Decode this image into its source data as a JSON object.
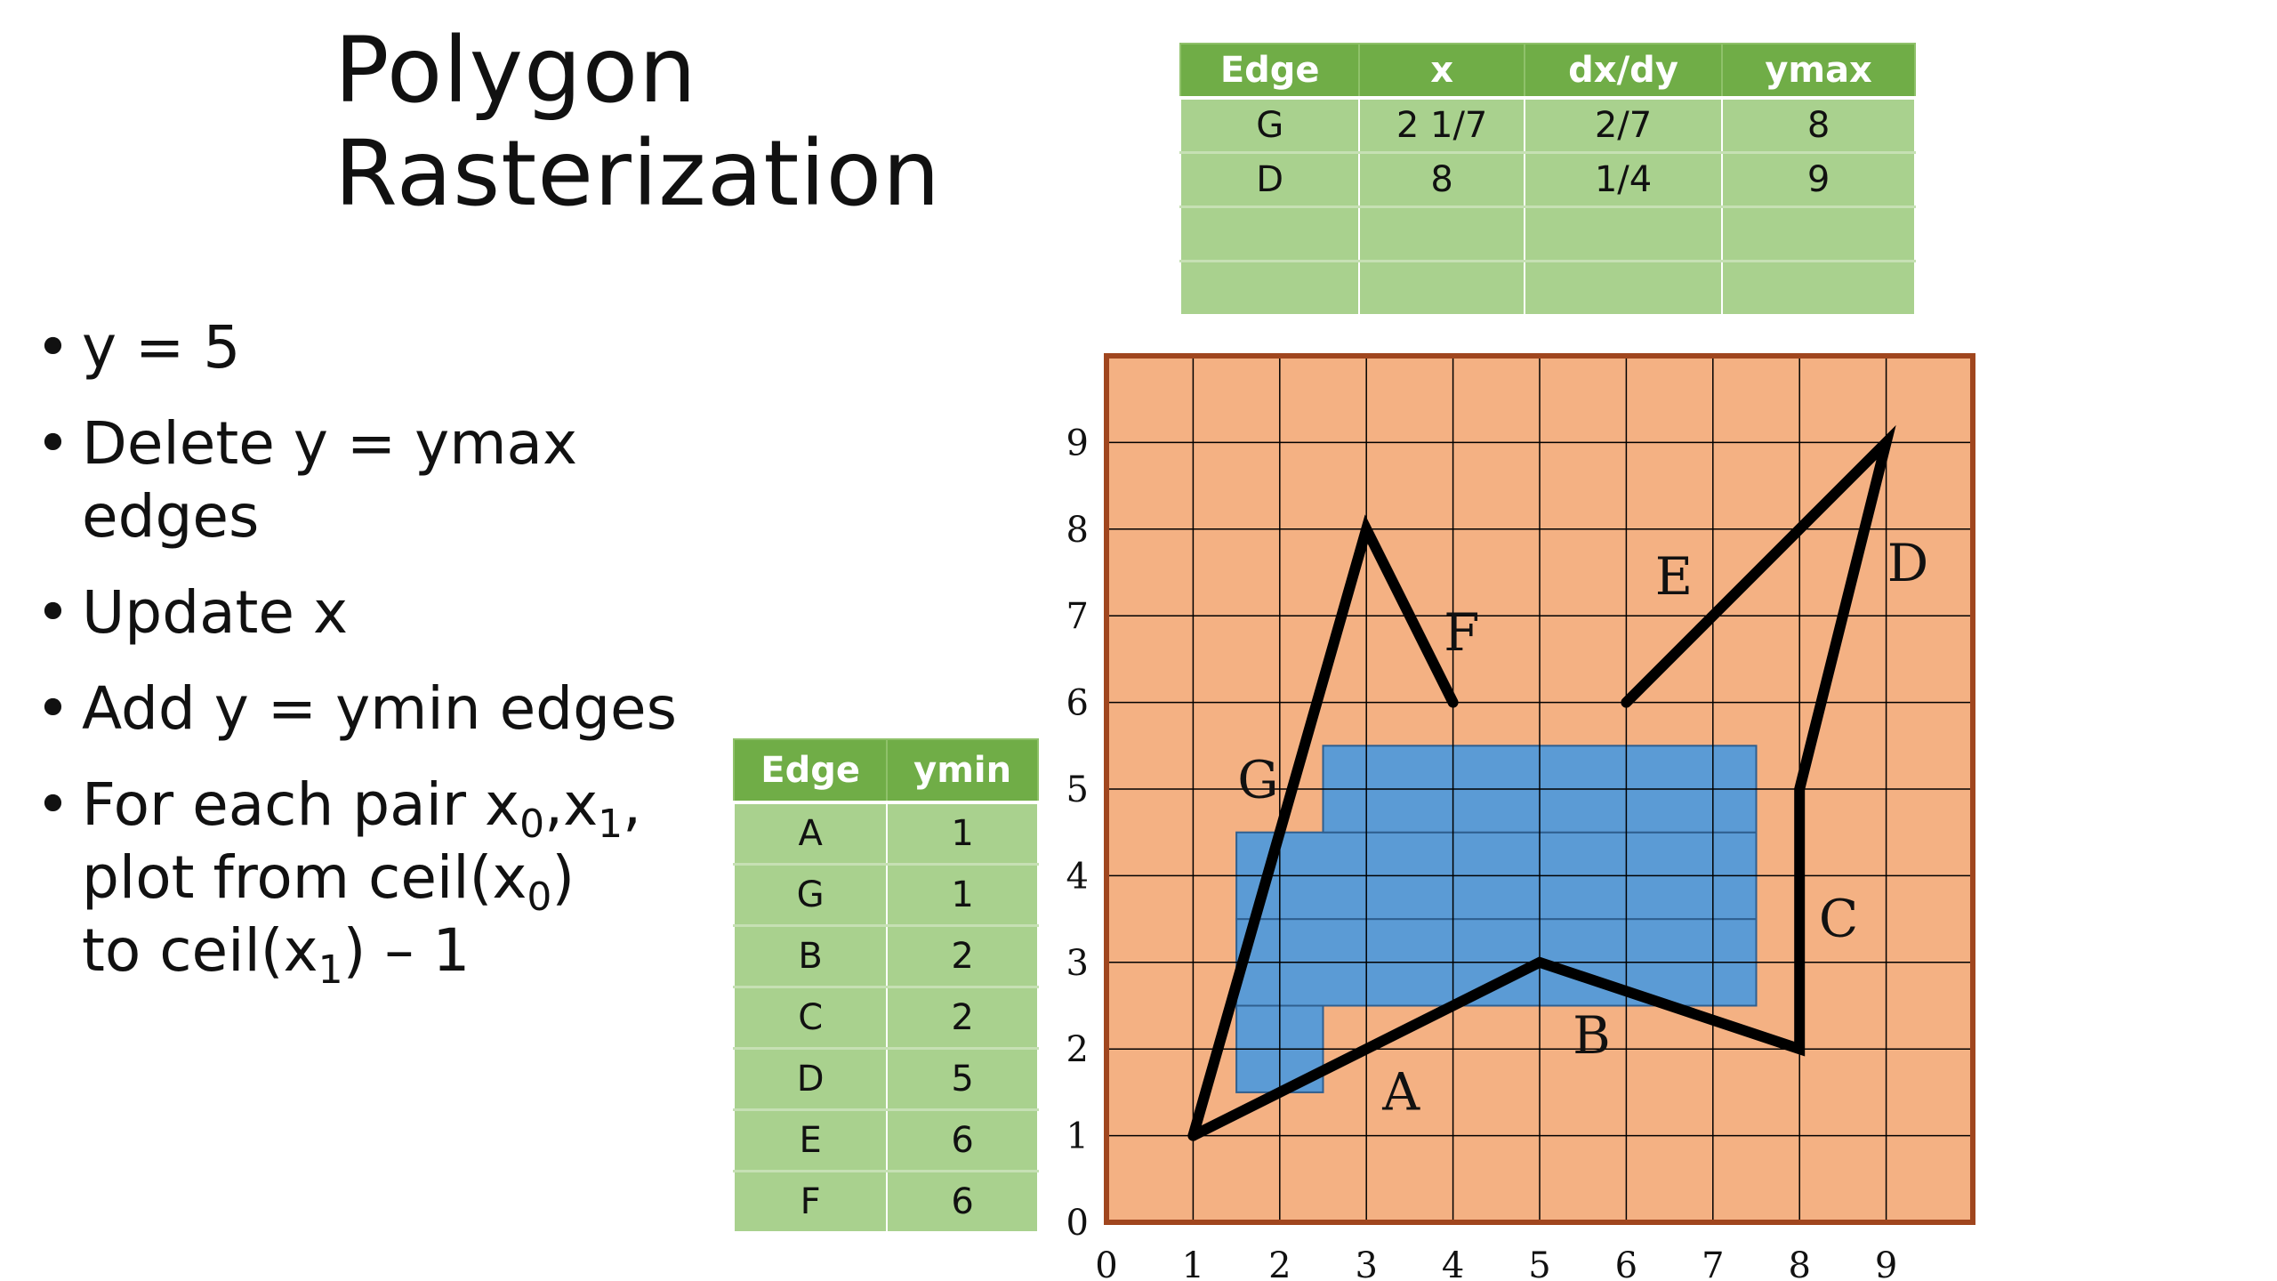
{
  "title": {
    "line1": "Polygon",
    "line2": "Rasterization"
  },
  "bullets": {
    "b1": "y = 5",
    "b2a": "Delete y = ymax",
    "b2b": "edges",
    "b3": "Update x",
    "b4": "Add y = ymin edges",
    "b5": {
      "t1": "For each pair x",
      "s0": "0",
      "t2": ",x",
      "s1": "1",
      "t3": ",",
      "t4": "plot from ceil(x",
      "s2": "0",
      "t5": ")",
      "t6": "to ceil(x",
      "s3": "1",
      "t7": ") – 1"
    }
  },
  "active_edge_table": {
    "headers": [
      "Edge",
      "x",
      "dx/dy",
      "ymax"
    ],
    "rows": [
      [
        "G",
        "2 1/7",
        "2/7",
        "8"
      ],
      [
        "D",
        "8",
        "1/4",
        "9"
      ],
      [
        "",
        "",
        "",
        ""
      ],
      [
        "",
        "",
        "",
        ""
      ]
    ]
  },
  "edge_table": {
    "headers": [
      "Edge",
      "ymin"
    ],
    "rows": [
      [
        "A",
        "1"
      ],
      [
        "G",
        "1"
      ],
      [
        "B",
        "2"
      ],
      [
        "C",
        "2"
      ],
      [
        "D",
        "5"
      ],
      [
        "E",
        "6"
      ],
      [
        "F",
        "6"
      ]
    ]
  },
  "chart_data": {
    "type": "diagram",
    "grid": {
      "x_range": [
        0,
        10
      ],
      "y_range": [
        0,
        10
      ],
      "fill": "#f4b183",
      "line": "#000000",
      "border": "#a0461e"
    },
    "x_ticks": [
      "0",
      "1",
      "2",
      "3",
      "4",
      "5",
      "6",
      "7",
      "8",
      "9"
    ],
    "y_ticks": [
      "0",
      "1",
      "2",
      "3",
      "4",
      "5",
      "6",
      "7",
      "8",
      "9"
    ],
    "filled_pixels_color": "#5b9bd5",
    "filled_pixels": [
      {
        "x": 1.5,
        "y": 1.5,
        "w": 1,
        "h": 1
      },
      {
        "x": 1.5,
        "y": 2.5,
        "w": 6,
        "h": 1
      },
      {
        "x": 1.5,
        "y": 3.5,
        "w": 6,
        "h": 1
      },
      {
        "x": 2.5,
        "y": 4.5,
        "w": 5,
        "h": 1
      }
    ],
    "polygon_paths": [
      [
        [
          1,
          1
        ],
        [
          5,
          3
        ],
        [
          8,
          2
        ],
        [
          8,
          5
        ],
        [
          9,
          9
        ],
        [
          6,
          6
        ]
      ],
      [
        [
          1,
          1
        ],
        [
          3,
          8
        ],
        [
          4,
          6
        ]
      ]
    ],
    "edge_labels": [
      {
        "label": "A",
        "x": 3.4,
        "y": 1.3
      },
      {
        "label": "B",
        "x": 5.6,
        "y": 1.95
      },
      {
        "label": "C",
        "x": 8.45,
        "y": 3.3
      },
      {
        "label": "D",
        "x": 9.25,
        "y": 7.4
      },
      {
        "label": "E",
        "x": 6.55,
        "y": 7.25
      },
      {
        "label": "F",
        "x": 4.1,
        "y": 6.6
      },
      {
        "label": "G",
        "x": 1.75,
        "y": 4.9
      }
    ]
  }
}
